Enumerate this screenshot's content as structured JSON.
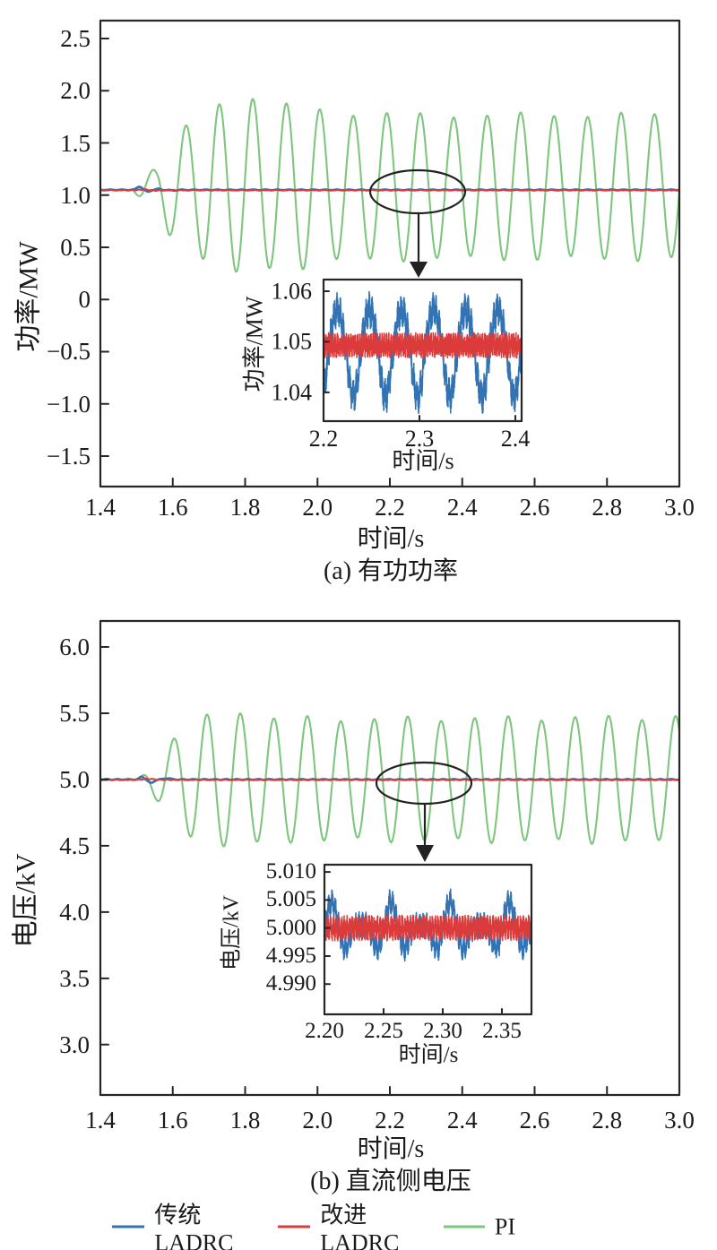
{
  "figure": {
    "background": "#ffffff"
  },
  "legend": {
    "items": [
      {
        "label": "传统LADRC",
        "color": "#3273B4"
      },
      {
        "label": "改进LADRC",
        "color": "#DC3B3B"
      },
      {
        "label": "PI",
        "color": "#7EC67E"
      }
    ]
  },
  "chart_data": [
    {
      "id": "active-power",
      "type": "line",
      "caption": "(a) 有功功率",
      "xlabel": "时间/s",
      "ylabel": "功率/MW",
      "xlim": [
        1.4,
        3.0
      ],
      "ylim": [
        -1.792,
        2.672
      ],
      "grid": false,
      "xticks": [
        {
          "label": "1.4",
          "v": 1.4
        },
        {
          "label": "1.6",
          "v": 1.6
        },
        {
          "label": "1.8",
          "v": 1.8
        },
        {
          "label": "2.0",
          "v": 2.0
        },
        {
          "label": "2.2",
          "v": 2.2
        },
        {
          "label": "2.4",
          "v": 2.4
        },
        {
          "label": "2.6",
          "v": 2.6
        },
        {
          "label": "2.8",
          "v": 2.8
        },
        {
          "label": "3.0",
          "v": 3.0
        }
      ],
      "yticks": [
        {
          "label": "2.5",
          "v": 2.5
        },
        {
          "label": "2.0",
          "v": 2.0
        },
        {
          "label": "1.5",
          "v": 1.5
        },
        {
          "label": "1.0",
          "v": 1.0
        },
        {
          "label": "0.5",
          "v": 0.5
        },
        {
          "label": "0",
          "v": 0
        },
        {
          "label": "−0.5",
          "v": -0.5
        },
        {
          "label": "−1.0",
          "v": -1.0
        },
        {
          "label": "−1.5",
          "v": -1.5
        }
      ],
      "series": [
        {
          "name": "PI",
          "color": "#7EC67E",
          "width": 2.1,
          "model": {
            "kind": "osc",
            "base": 1.05,
            "baseShift": 0.03,
            "shiftT0": 1.5,
            "shiftT1": 1.68,
            "period": 0.0925,
            "tPeak": 1.544,
            "mod": [
              0.025,
              0.31
            ],
            "env": [
              [
                1.49,
                0
              ],
              [
                1.52,
                0.13
              ],
              [
                1.555,
                0.21
              ],
              [
                1.59,
                0.44
              ],
              [
                1.63,
                0.57
              ],
              [
                1.67,
                0.63
              ],
              [
                1.71,
                0.79
              ],
              [
                1.76,
                0.82
              ],
              [
                1.81,
                0.88
              ],
              [
                1.87,
                0.77
              ],
              [
                1.94,
                0.78
              ],
              [
                2.05,
                0.71
              ],
              [
                2.3,
                0.685
              ],
              [
                3.0,
                0.69
              ]
            ]
          }
        },
        {
          "name": "传统LADRC",
          "color": "#3273B4",
          "width": 2.6,
          "model": {
            "kind": "flat",
            "base": 1.05,
            "bumps": [
              [
                1.508,
                0.033,
                0.01
              ],
              [
                1.531,
                -0.018,
                0.009
              ],
              [
                1.56,
                0.009,
                0.01
              ],
              [
                1.6,
                -0.005,
                0.012
              ]
            ],
            "ripple": [
              0.0035,
              0.033
            ],
            "noise": 0.0012
          }
        },
        {
          "name": "改进LADRC",
          "color": "#DC3B3B",
          "width": 2.0,
          "model": {
            "kind": "flat",
            "base": 1.048,
            "bumps": [
              [
                1.52,
                0.006,
                0.015
              ],
              [
                1.56,
                -0.004,
                0.02
              ]
            ],
            "ripple": [
              0.0028,
              0.019
            ],
            "noise": 0.0012
          }
        }
      ],
      "inset": {
        "xlabel": "时间/s",
        "ylabel": "功率/MW",
        "xlim": [
          2.2,
          2.4065
        ],
        "ylim": [
          1.0343,
          1.0623
        ],
        "xticks": [
          {
            "label": "2.2",
            "v": 2.2
          },
          {
            "label": "2.3",
            "v": 2.3
          },
          {
            "label": "2.4",
            "v": 2.4
          }
        ],
        "yticks": [
          {
            "label": "1.06",
            "v": 1.06
          },
          {
            "label": "1.05",
            "v": 1.05
          },
          {
            "label": "1.04",
            "v": 1.04
          }
        ],
        "series": [
          {
            "name": "传统LADRC",
            "color": "#3273B4",
            "width": 1.6,
            "model": {
              "kind": "burst",
              "base": 1.0495,
              "t0": 2.206,
              "period": 0.0335,
              "up": 0.0068,
              "down": 0.0102,
              "texture": [
                0.0015,
                300
              ],
              "noise": 0.0022,
              "samples": 2600
            }
          },
          {
            "name": "改进LADRC",
            "color": "#DC3B3B",
            "width": 1.5,
            "model": {
              "kind": "band",
              "base": 1.0493,
              "amp": 0.0016,
              "freq": 430,
              "noise": 0.0009,
              "samples": 3200
            }
          }
        ]
      }
    },
    {
      "id": "dc-voltage",
      "type": "line",
      "caption": "(b) 直流侧电压",
      "xlabel": "时间/s",
      "ylabel": "电压/kV",
      "xlim": [
        1.4,
        3.0
      ],
      "ylim": [
        2.62,
        6.196
      ],
      "grid": false,
      "xticks": [
        {
          "label": "1.4",
          "v": 1.4
        },
        {
          "label": "1.6",
          "v": 1.6
        },
        {
          "label": "1.8",
          "v": 1.8
        },
        {
          "label": "2.0",
          "v": 2.0
        },
        {
          "label": "2.2",
          "v": 2.2
        },
        {
          "label": "2.4",
          "v": 2.4
        },
        {
          "label": "2.6",
          "v": 2.6
        },
        {
          "label": "2.8",
          "v": 2.8
        },
        {
          "label": "3.0",
          "v": 3.0
        }
      ],
      "yticks": [
        {
          "label": "6.0",
          "v": 6.0
        },
        {
          "label": "5.5",
          "v": 5.5
        },
        {
          "label": "5.0",
          "v": 5.0
        },
        {
          "label": "4.5",
          "v": 4.5
        },
        {
          "label": "4.0",
          "v": 4.0
        },
        {
          "label": "3.5",
          "v": 3.5
        },
        {
          "label": "3.0",
          "v": 3.0
        }
      ],
      "series": [
        {
          "name": "PI",
          "color": "#7EC67E",
          "width": 2.1,
          "model": {
            "kind": "osc",
            "base": 5.0,
            "period": 0.0925,
            "tPeak": 1.602,
            "mod": [
              0.02,
              0.27
            ],
            "env": [
              [
                1.505,
                0
              ],
              [
                1.535,
                0.09
              ],
              [
                1.575,
                0.22
              ],
              [
                1.615,
                0.35
              ],
              [
                1.665,
                0.46
              ],
              [
                1.72,
                0.49
              ],
              [
                1.78,
                0.515
              ],
              [
                1.88,
                0.465
              ],
              [
                2.05,
                0.455
              ],
              [
                2.4,
                0.46
              ],
              [
                3.0,
                0.47
              ]
            ]
          }
        },
        {
          "name": "传统LADRC",
          "color": "#3273B4",
          "width": 2.6,
          "model": {
            "kind": "flat",
            "base": 5.0,
            "bumps": [
              [
                1.515,
                0.02,
                0.009
              ],
              [
                1.54,
                -0.028,
                0.01
              ],
              [
                1.585,
                0.01,
                0.012
              ]
            ],
            "ripple": [
              0.003,
              0.03
            ],
            "noise": 0.001
          }
        },
        {
          "name": "改进LADRC",
          "color": "#DC3B3B",
          "width": 2.0,
          "model": {
            "kind": "flat",
            "base": 4.998,
            "bumps": [
              [
                1.53,
                0.007,
                0.02
              ]
            ],
            "ripple": [
              0.0028,
              0.02
            ],
            "noise": 0.001
          }
        }
      ],
      "inset": {
        "xlabel": "时间/s",
        "ylabel": "电压/kV",
        "xlim": [
          2.2,
          2.375
        ],
        "ylim": [
          4.9846,
          5.0113
        ],
        "xticks": [
          {
            "label": "2.20",
            "v": 2.2
          },
          {
            "label": "2.25",
            "v": 2.25
          },
          {
            "label": "2.30",
            "v": 2.3
          },
          {
            "label": "2.35",
            "v": 2.35
          }
        ],
        "yticks": [
          {
            "label": "5.010",
            "v": 5.01
          },
          {
            "label": "5.005",
            "v": 5.005
          },
          {
            "label": "5.000",
            "v": 5.0
          },
          {
            "label": "4.995",
            "v": 4.995
          },
          {
            "label": "4.990",
            "v": 4.99
          }
        ],
        "series": [
          {
            "name": "传统LADRC",
            "color": "#3273B4",
            "width": 1.6,
            "model": {
              "kind": "burst",
              "base": 5.0,
              "t0": 2.2,
              "period": 0.025,
              "envPeriod": 0.05,
              "up": 0.0046,
              "down": 0.006,
              "texture": [
                0.0012,
                350
              ],
              "noise": 0.0013,
              "samples": 2600
            }
          },
          {
            "name": "改进LADRC",
            "color": "#DC3B3B",
            "width": 1.5,
            "model": {
              "kind": "band",
              "base": 5.0,
              "amp": 0.0015,
              "freq": 430,
              "noise": 0.0008,
              "samples": 3200
            }
          }
        ]
      }
    }
  ]
}
